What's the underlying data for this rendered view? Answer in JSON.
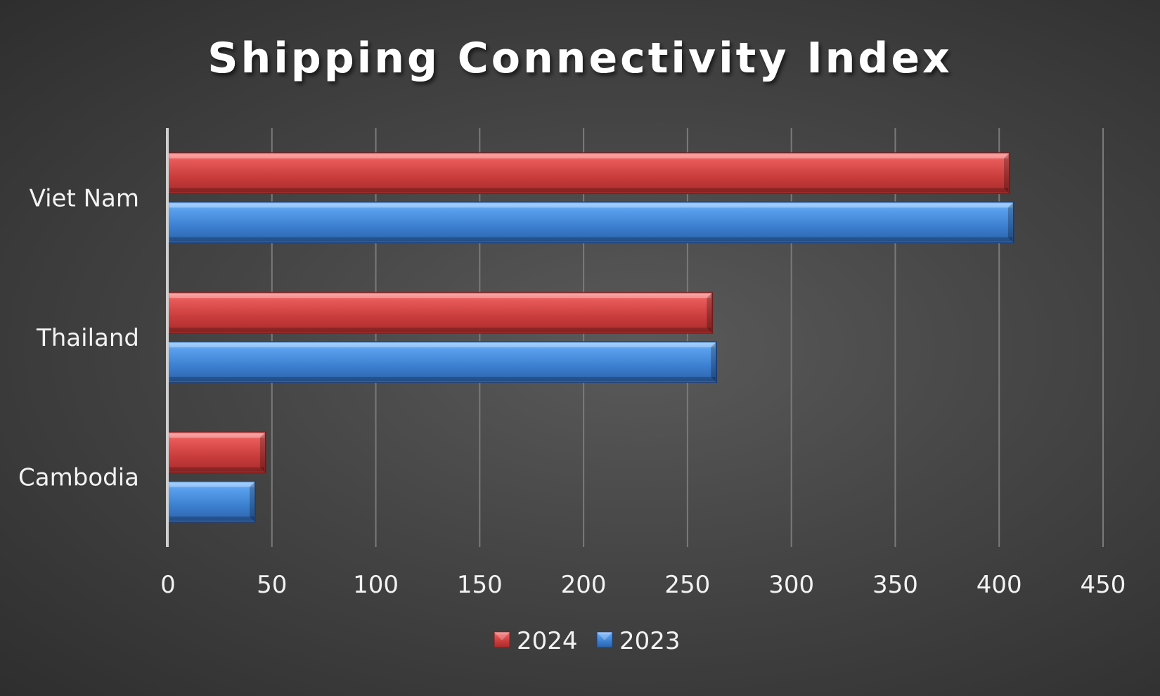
{
  "chart_data": {
    "type": "bar",
    "orientation": "horizontal",
    "title": "Shipping Connectivity Index",
    "xlabel": "",
    "ylabel": "",
    "categories": [
      "Viet Nam",
      "Thailand",
      "Cambodia"
    ],
    "series": [
      {
        "name": "2024",
        "values": [
          405,
          262,
          47
        ],
        "color": "#d94a4a"
      },
      {
        "name": "2023",
        "values": [
          407,
          264,
          42
        ],
        "color": "#4a8ad9"
      }
    ],
    "xlim": [
      0,
      450
    ],
    "xticks": [
      "0",
      "50",
      "100",
      "150",
      "200",
      "250",
      "300",
      "350",
      "400",
      "450"
    ],
    "grid": true,
    "legend_position": "bottom",
    "legend_order": [
      "2024",
      "2023"
    ]
  }
}
